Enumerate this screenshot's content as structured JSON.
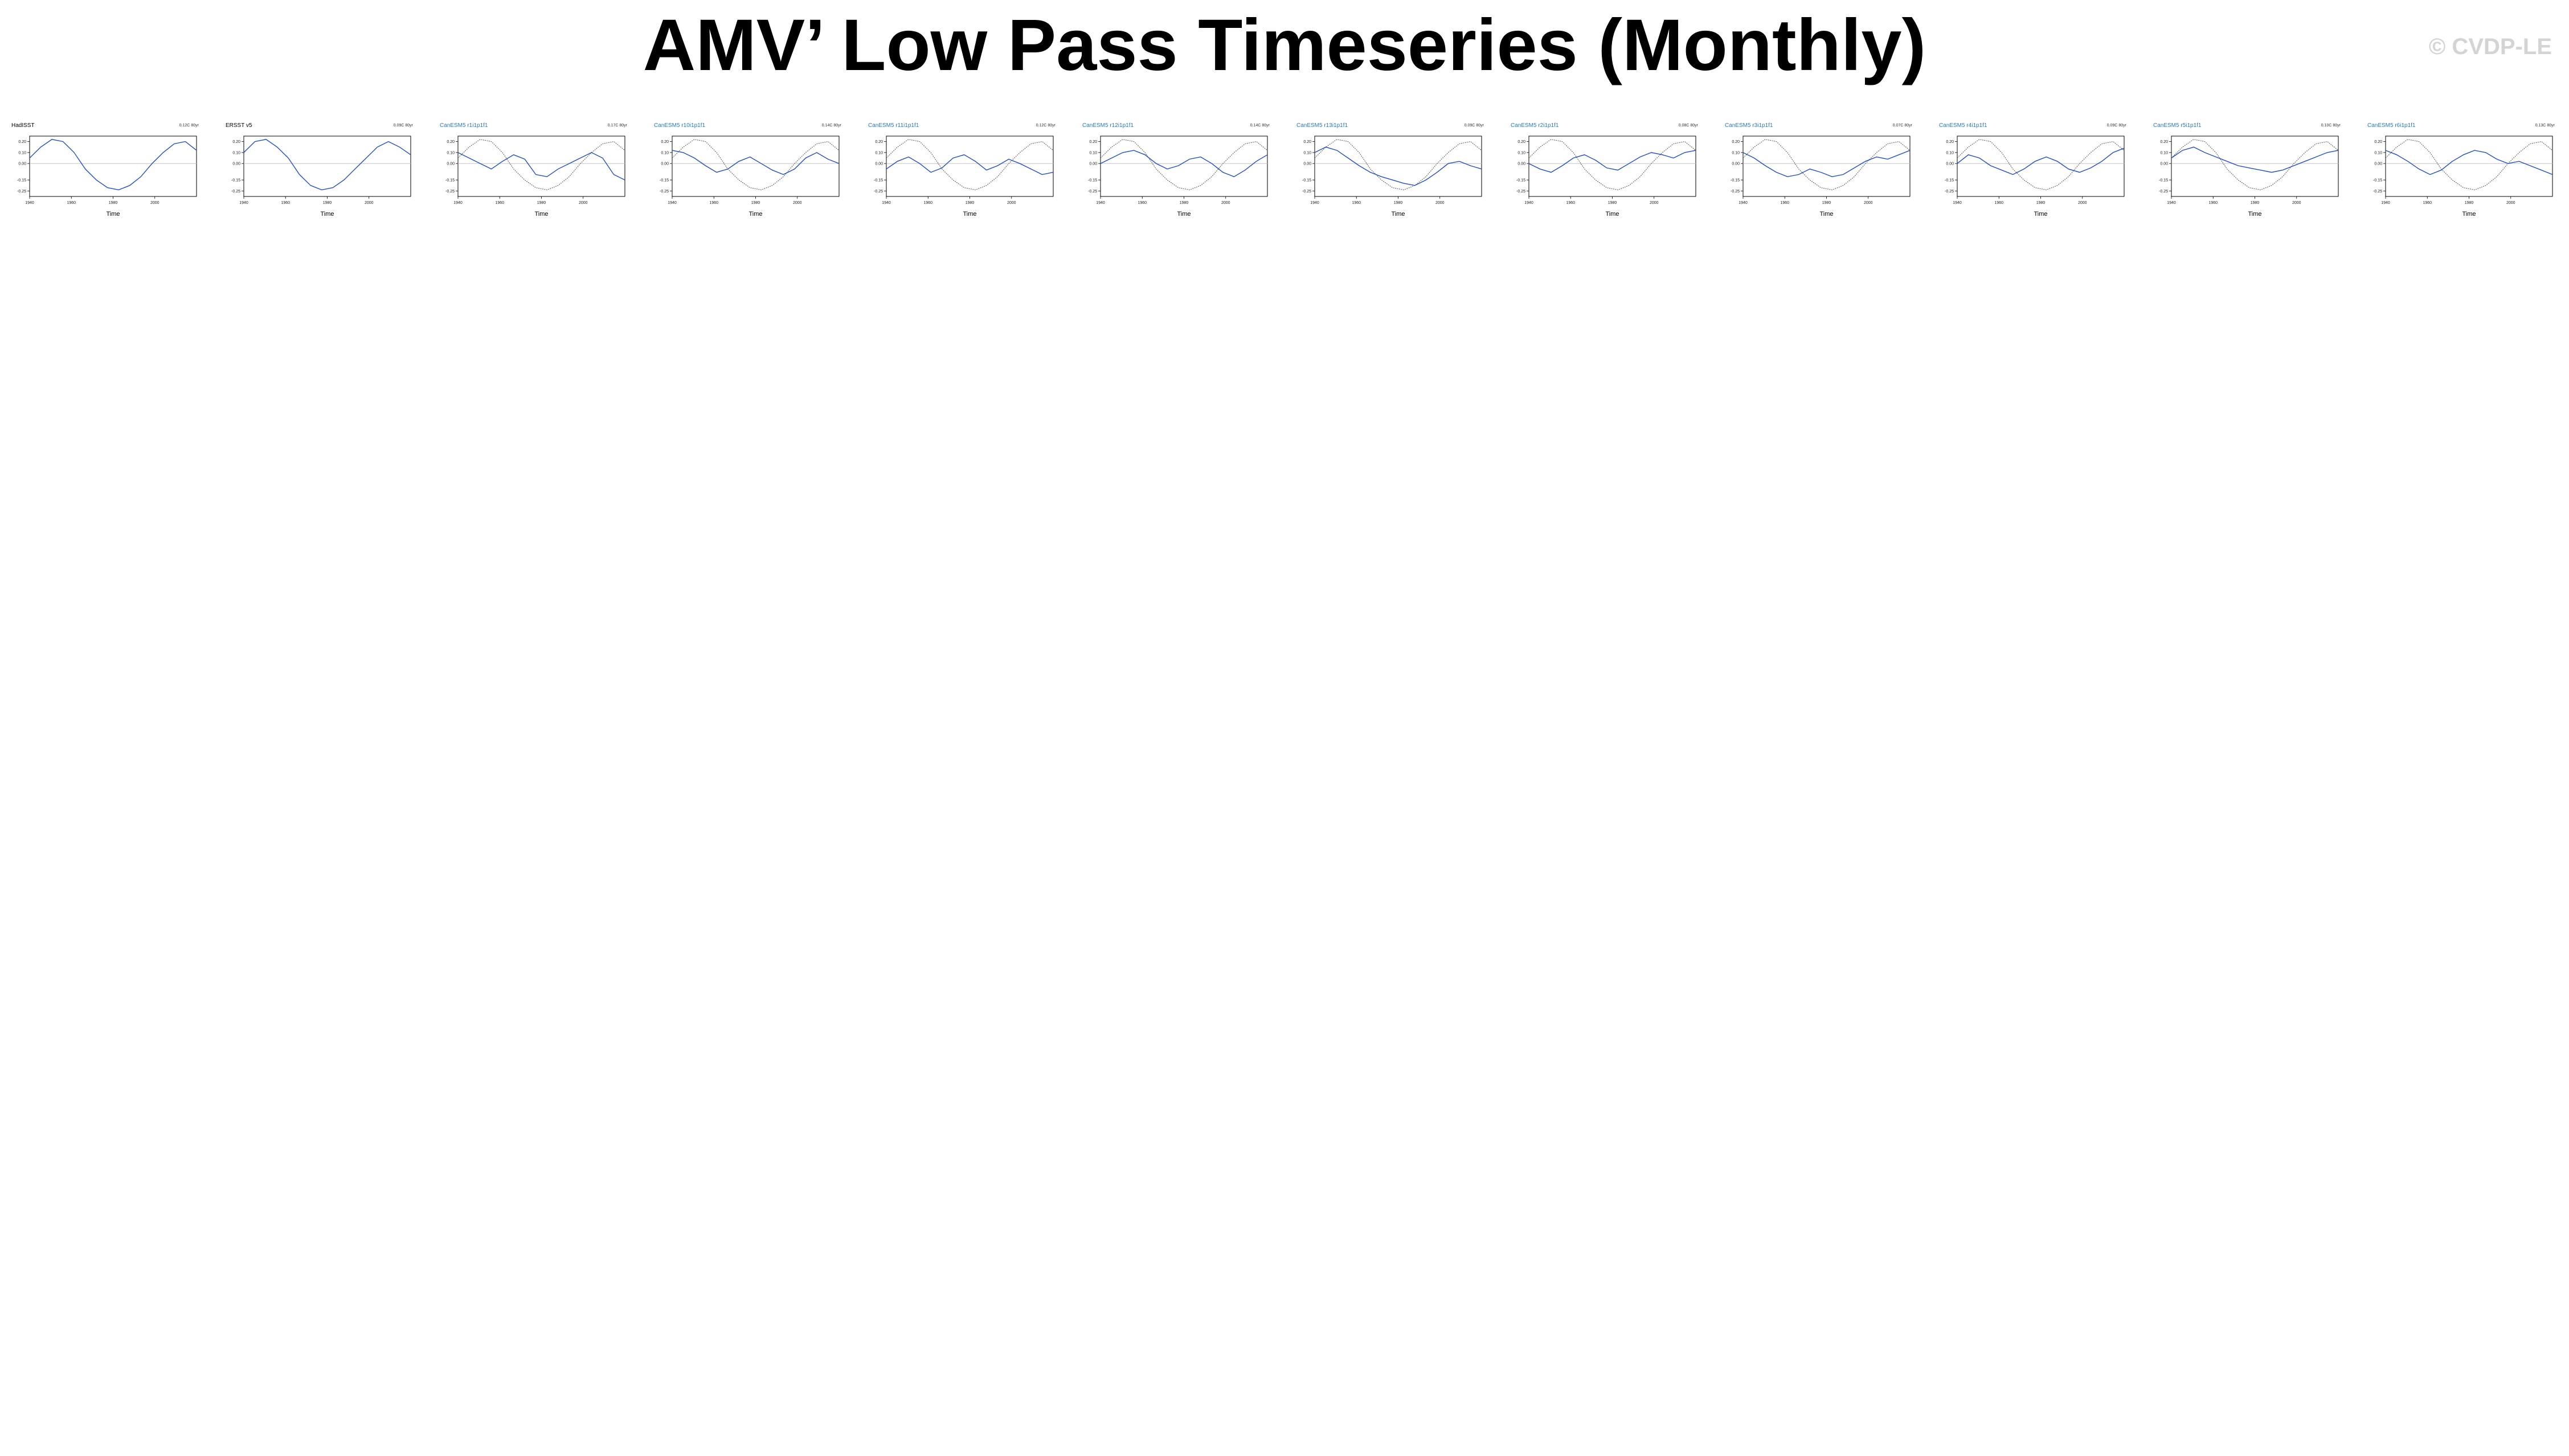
{
  "title": "AMV’ Low Pass Timeseries (Monthly)",
  "watermark": "© CVDP-LE",
  "chart_data": {
    "type": "line",
    "title": "AMV’ Low Pass Timeseries (Monthly)",
    "xlabel": "Time",
    "ylabel": "",
    "xlim": [
      1940,
      2020
    ],
    "xticks": [
      1940,
      1960,
      1980,
      2000
    ],
    "ylim": [
      -0.3,
      0.25
    ],
    "yticks": [
      -0.25,
      -0.15,
      0,
      0.1,
      0.2
    ],
    "reference_series_color": "#555555",
    "member_series_color": "#1f4fc4",
    "panels": [
      {
        "label": "HadISST",
        "trend": "0.12C 80yr",
        "color": "#000000",
        "values": [
          0.05,
          0.15,
          0.22,
          0.2,
          0.1,
          -0.05,
          -0.15,
          -0.22,
          -0.24,
          -0.2,
          -0.12,
          0.0,
          0.1,
          0.18,
          0.2,
          0.12
        ]
      },
      {
        "label": "ERSST v5",
        "trend": "0.09C 80yr",
        "color": "#000000",
        "values": [
          0.1,
          0.2,
          0.22,
          0.15,
          0.05,
          -0.1,
          -0.2,
          -0.24,
          -0.22,
          -0.15,
          -0.05,
          0.05,
          0.15,
          0.2,
          0.15,
          0.08
        ]
      },
      {
        "label": "CanESM5 r1i1p1f1",
        "trend": "0.17C 80yr",
        "color": "#2a7bbf",
        "values": [
          0.1,
          0.05,
          0.0,
          -0.05,
          0.02,
          0.08,
          0.04,
          -0.1,
          -0.12,
          -0.05,
          0.0,
          0.05,
          0.1,
          0.05,
          -0.1,
          -0.15
        ]
      },
      {
        "label": "CanESM5 r10i1p1f1",
        "trend": "0.14C 80yr",
        "color": "#2a7bbf",
        "values": [
          0.12,
          0.1,
          0.05,
          -0.02,
          -0.08,
          -0.05,
          0.02,
          0.06,
          0.0,
          -0.06,
          -0.1,
          -0.05,
          0.05,
          0.1,
          0.04,
          0.0
        ]
      },
      {
        "label": "CanESM5 r11i1p1f1",
        "trend": "0.12C 80yr",
        "color": "#2a7bbf",
        "values": [
          -0.05,
          0.02,
          0.06,
          0.0,
          -0.08,
          -0.04,
          0.05,
          0.08,
          0.02,
          -0.06,
          -0.02,
          0.04,
          0.0,
          -0.05,
          -0.1,
          -0.08
        ]
      },
      {
        "label": "CanESM5 r12i1p1f1",
        "trend": "0.14C 80yr",
        "color": "#2a7bbf",
        "values": [
          0.0,
          0.05,
          0.1,
          0.12,
          0.08,
          0.0,
          -0.05,
          -0.02,
          0.04,
          0.06,
          0.0,
          -0.08,
          -0.12,
          -0.06,
          0.02,
          0.08
        ]
      },
      {
        "label": "CanESM5 r13i1p1f1",
        "trend": "0.09C 80yr",
        "color": "#2a7bbf",
        "values": [
          0.1,
          0.15,
          0.12,
          0.05,
          -0.02,
          -0.08,
          -0.12,
          -0.15,
          -0.18,
          -0.2,
          -0.15,
          -0.08,
          0.0,
          0.02,
          -0.02,
          -0.05
        ]
      },
      {
        "label": "CanESM5 r2i1p1f1",
        "trend": "0.08C 80yr",
        "color": "#2a7bbf",
        "values": [
          0.0,
          -0.05,
          -0.08,
          -0.02,
          0.05,
          0.08,
          0.03,
          -0.04,
          -0.06,
          0.0,
          0.06,
          0.1,
          0.08,
          0.05,
          0.1,
          0.12
        ]
      },
      {
        "label": "CanESM5 r3i1p1f1",
        "trend": "0.07C 80yr",
        "color": "#2a7bbf",
        "values": [
          0.1,
          0.05,
          -0.02,
          -0.08,
          -0.12,
          -0.1,
          -0.05,
          -0.08,
          -0.12,
          -0.1,
          -0.04,
          0.02,
          0.06,
          0.04,
          0.08,
          0.12
        ]
      },
      {
        "label": "CanESM5 r4i1p1f1",
        "trend": "0.09C 80yr",
        "color": "#2a7bbf",
        "values": [
          0.0,
          0.08,
          0.05,
          -0.02,
          -0.06,
          -0.1,
          -0.05,
          0.02,
          0.06,
          0.02,
          -0.05,
          -0.08,
          -0.04,
          0.02,
          0.1,
          0.14
        ]
      },
      {
        "label": "CanESM5 r5i1p1f1",
        "trend": "0.10C 80yr",
        "color": "#2a7bbf",
        "values": [
          0.05,
          0.12,
          0.15,
          0.1,
          0.06,
          0.02,
          -0.02,
          -0.04,
          -0.06,
          -0.08,
          -0.06,
          -0.02,
          0.02,
          0.06,
          0.1,
          0.12
        ]
      },
      {
        "label": "CanESM5 r6i1p1f1",
        "trend": "0.13C 80yr",
        "color": "#2a7bbf",
        "values": [
          0.12,
          0.08,
          0.02,
          -0.05,
          -0.1,
          -0.06,
          0.02,
          0.08,
          0.12,
          0.1,
          0.04,
          0.0,
          0.02,
          -0.02,
          -0.06,
          -0.1
        ]
      }
    ]
  }
}
